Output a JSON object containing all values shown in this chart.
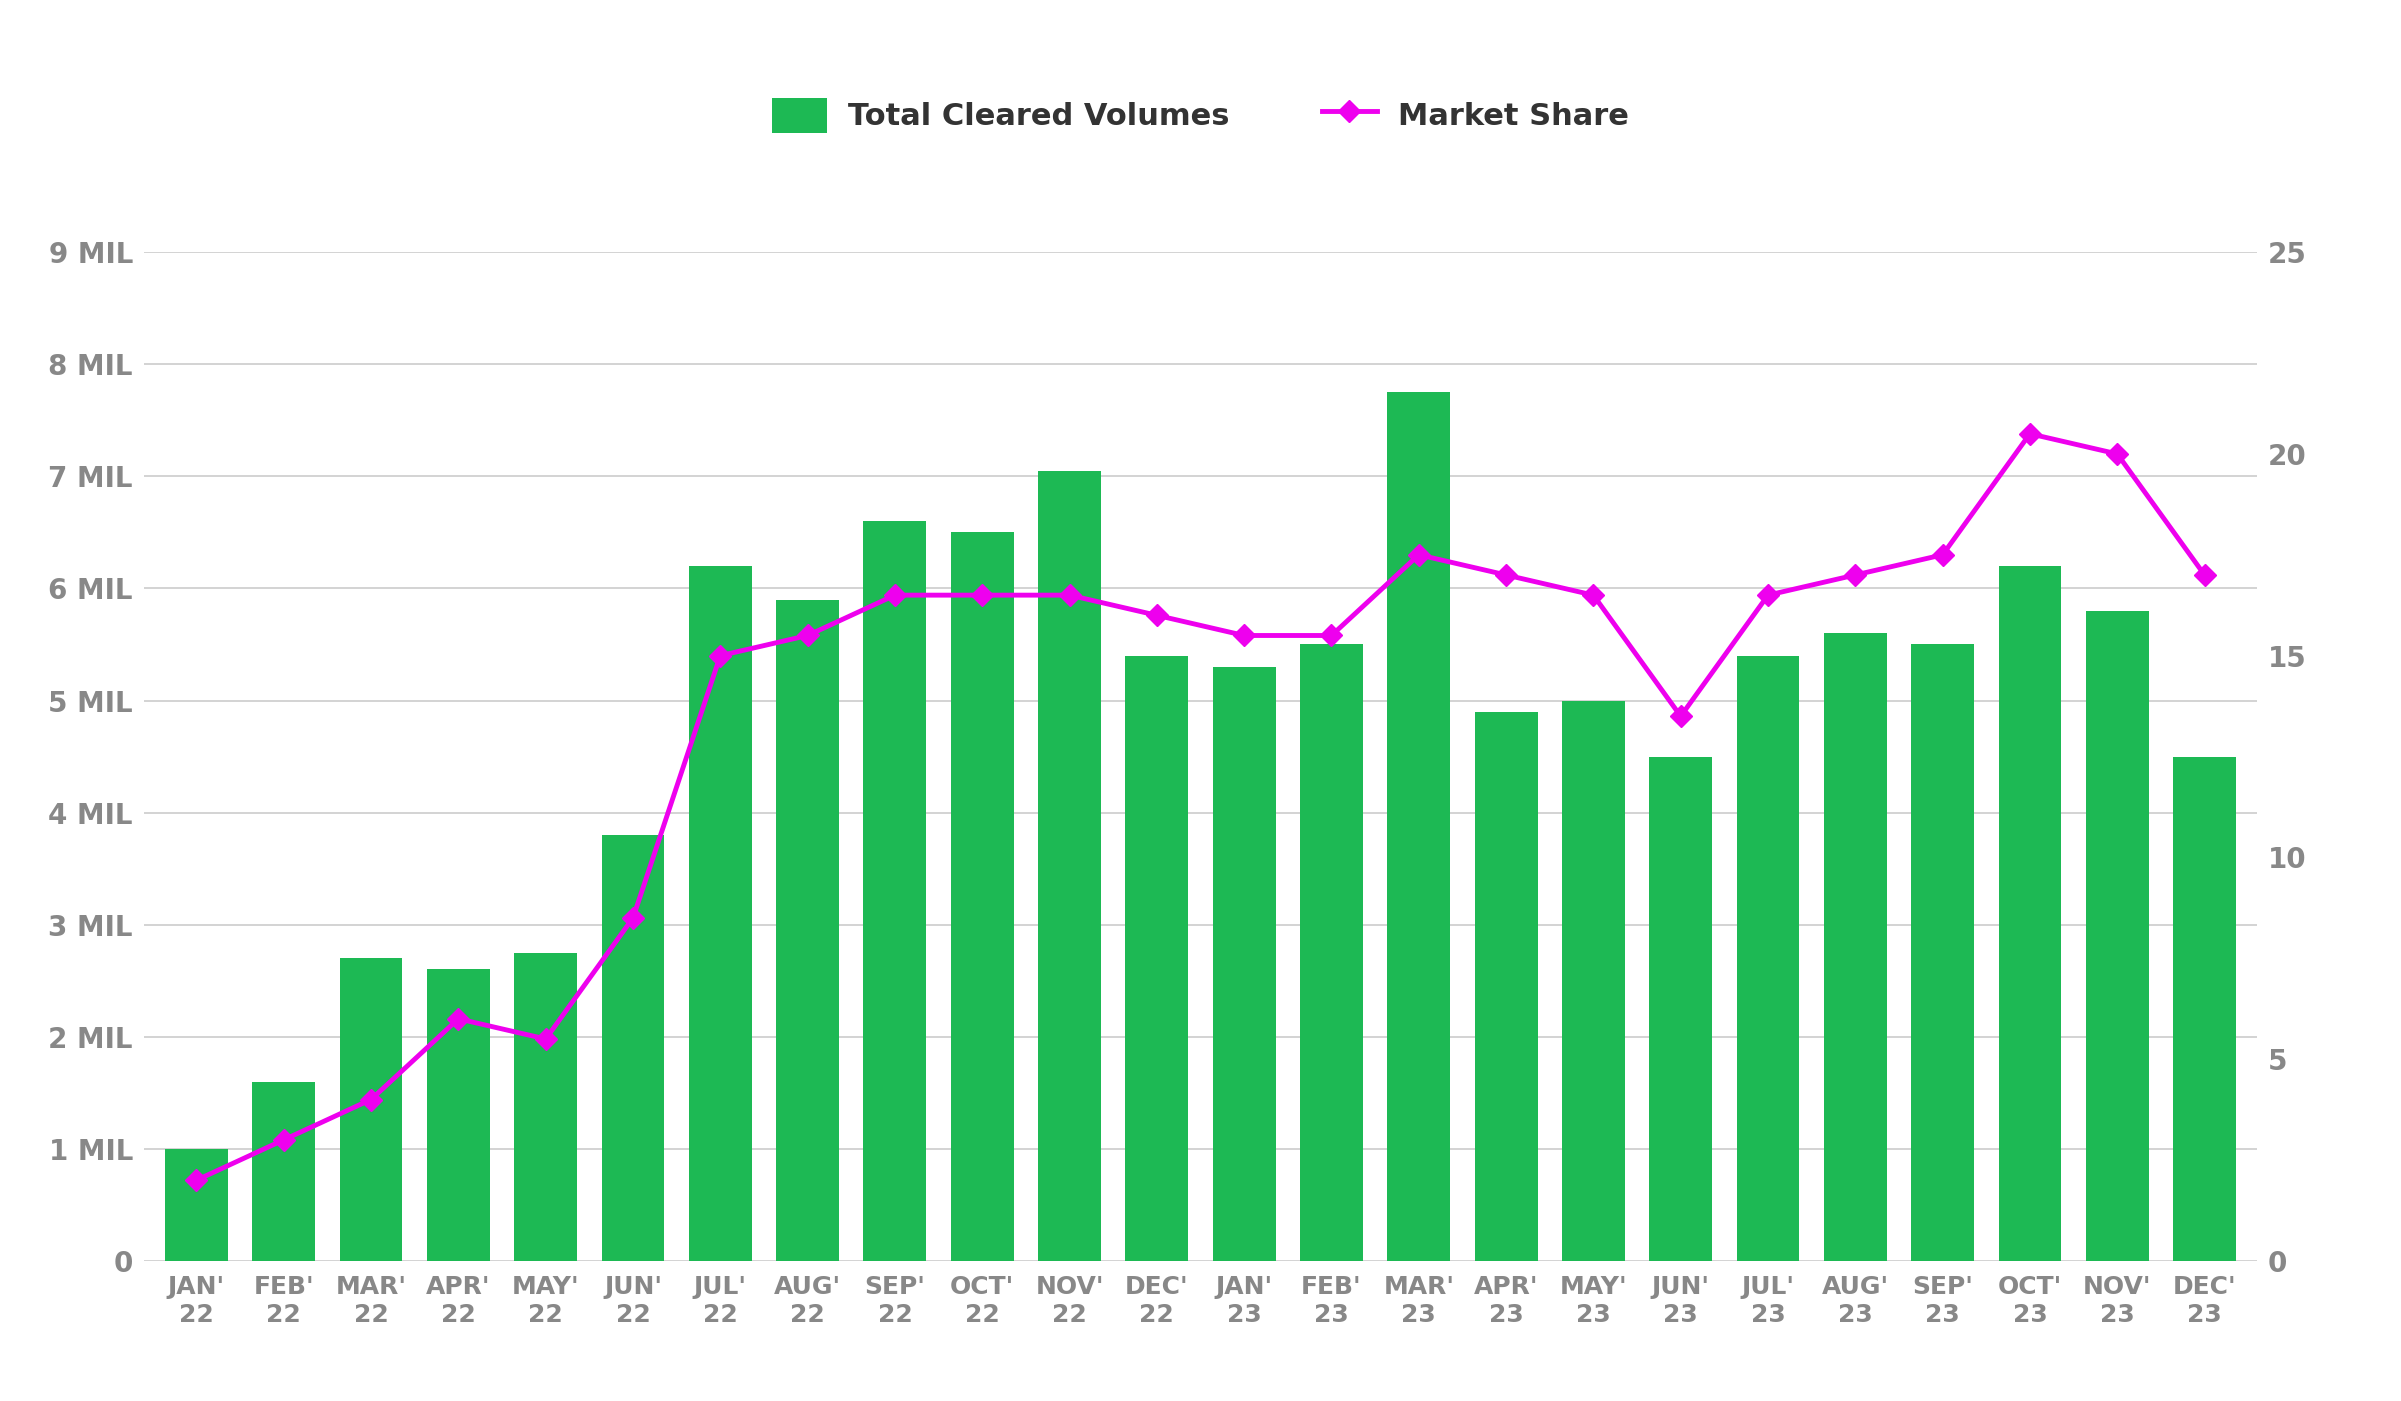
{
  "categories": [
    "JAN'\n22",
    "FEB'\n22",
    "MAR'\n22",
    "APR'\n22",
    "MAY'\n22",
    "JUN'\n22",
    "JUL'\n22",
    "AUG'\n22",
    "SEP'\n22",
    "OCT'\n22",
    "NOV'\n22",
    "DEC'\n22",
    "JAN'\n23",
    "FEB'\n23",
    "MAR'\n23",
    "APR'\n23",
    "MAY'\n23",
    "JUN'\n23",
    "JUL'\n23",
    "AUG'\n23",
    "SEP'\n23",
    "OCT'\n23",
    "NOV'\n23",
    "DEC'\n23"
  ],
  "volumes": [
    1.0,
    1.6,
    2.7,
    2.6,
    2.75,
    3.8,
    6.2,
    5.9,
    6.6,
    6.5,
    7.05,
    5.4,
    5.3,
    5.5,
    7.75,
    4.9,
    5.0,
    4.5,
    5.4,
    5.6,
    5.5,
    6.2,
    5.8,
    4.5
  ],
  "market_share": [
    2.0,
    3.0,
    4.0,
    6.0,
    5.5,
    8.5,
    15.0,
    15.5,
    16.5,
    16.5,
    16.5,
    16.0,
    15.5,
    15.5,
    17.5,
    17.0,
    16.5,
    13.5,
    16.5,
    17.0,
    17.5,
    20.5,
    20.0,
    17.0
  ],
  "bar_color": "#1DB954",
  "line_color": "#EE00EE",
  "background_color": "#FFFFFF",
  "grid_color": "#CCCCCC",
  "tick_color": "#888888",
  "legend_label_bar": "Total Cleared Volumes",
  "legend_label_line": "Market Share",
  "left_ylim": [
    0,
    9
  ],
  "right_ylim": [
    0,
    25
  ],
  "left_yticks": [
    0,
    1,
    2,
    3,
    4,
    5,
    6,
    7,
    8,
    9
  ],
  "left_ytick_labels": [
    "0",
    "1 MIL",
    "2 MIL",
    "3 MIL",
    "4 MIL",
    "5 MIL",
    "6 MIL",
    "7 MIL",
    "8 MIL",
    "9 MIL"
  ],
  "right_yticks": [
    0,
    5,
    10,
    15,
    20,
    25
  ],
  "right_ytick_labels": [
    "0",
    "5",
    "10",
    "15",
    "20",
    "25"
  ],
  "tick_fontsize": 20,
  "legend_fontsize": 22
}
